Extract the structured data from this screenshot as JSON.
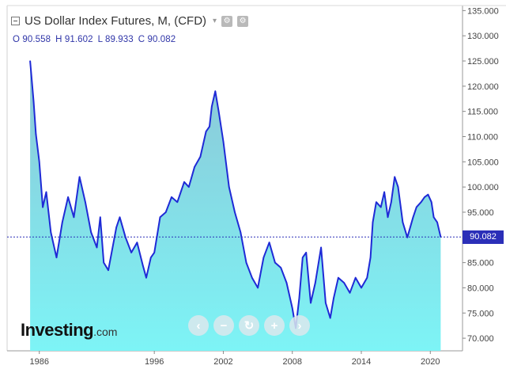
{
  "title": {
    "text": "US Dollar Index Futures, M, (CFD)",
    "caret": "▾",
    "icons": [
      "settings-icon",
      "gear-icon"
    ]
  },
  "ohlc": {
    "o_label": "O",
    "o_value": "90.558",
    "h_label": "H",
    "h_value": "91.602",
    "l_label": "L",
    "l_value": "89.933",
    "c_label": "C",
    "c_value": "90.082"
  },
  "current_price_tag": "90.082",
  "brand": {
    "name": "Investing",
    "domain": ".com"
  },
  "zoom_controls": [
    {
      "name": "scroll-left-icon",
      "glyph": "‹"
    },
    {
      "name": "zoom-out-icon",
      "glyph": "−"
    },
    {
      "name": "reset-icon",
      "glyph": "↻"
    },
    {
      "name": "zoom-in-icon",
      "glyph": "+"
    },
    {
      "name": "scroll-right-icon",
      "glyph": "›"
    }
  ],
  "colors": {
    "line": "#1f2ad6",
    "area_top": "#8dc6d6",
    "area_bottom": "#7df4f6",
    "price_line": "#2b2fb8",
    "price_tag_bg": "#2b2fb8",
    "axis_text": "#444444",
    "tick": "#888888"
  },
  "chart_data": {
    "type": "area",
    "title": "US Dollar Index Futures, M, (CFD)",
    "x_tick_labels": [
      "1986",
      "1996",
      "2002",
      "2008",
      "2014",
      "2020"
    ],
    "y_tick_labels": [
      "70.000",
      "75.000",
      "80.000",
      "85.000",
      "90.000",
      "95.000",
      "100.000",
      "105.000",
      "110.000",
      "115.000",
      "120.000",
      "125.000",
      "130.000",
      "135.000"
    ],
    "ylim": [
      67.5,
      136
    ],
    "xlim": [
      1983.2,
      2022.8
    ],
    "current_price": 90.082,
    "grid": false,
    "x": [
      1985.2,
      1985.5,
      1985.7,
      1986.0,
      1986.3,
      1986.6,
      1987.0,
      1987.5,
      1988.0,
      1988.5,
      1989.0,
      1989.5,
      1990.0,
      1990.5,
      1991.0,
      1991.3,
      1991.6,
      1992.0,
      1992.7,
      1993.0,
      1993.5,
      1994.0,
      1994.5,
      1995.0,
      1995.3,
      1995.7,
      1996.0,
      1996.5,
      1997.0,
      1997.5,
      1998.0,
      1998.6,
      1999.0,
      1999.5,
      2000.0,
      2000.5,
      2000.8,
      2001.0,
      2001.3,
      2001.6,
      2002.0,
      2002.5,
      2003.0,
      2003.5,
      2004.0,
      2004.5,
      2005.0,
      2005.5,
      2006.0,
      2006.5,
      2007.0,
      2007.5,
      2008.0,
      2008.3,
      2008.6,
      2008.9,
      2009.2,
      2009.6,
      2010.0,
      2010.5,
      2010.9,
      2011.3,
      2011.6,
      2012.0,
      2012.5,
      2013.0,
      2013.5,
      2014.0,
      2014.5,
      2014.8,
      2015.0,
      2015.3,
      2015.7,
      2016.0,
      2016.3,
      2016.6,
      2016.9,
      2017.2,
      2017.6,
      2018.0,
      2018.5,
      2018.8,
      2019.2,
      2019.5,
      2019.8,
      2020.1,
      2020.3,
      2020.6,
      2020.9
    ],
    "y": [
      125.0,
      117.0,
      110.5,
      105.0,
      96.0,
      99.0,
      91.0,
      86.0,
      93.0,
      98.0,
      94.0,
      102.0,
      97.0,
      91.0,
      88.0,
      94.0,
      85.0,
      83.5,
      92.0,
      94.0,
      90.0,
      87.0,
      89.0,
      84.5,
      82.0,
      86.0,
      87.0,
      94.0,
      95.0,
      98.0,
      97.0,
      101.0,
      100.0,
      104.0,
      106.0,
      111.0,
      112.0,
      116.0,
      119.0,
      115.0,
      109.0,
      100.0,
      95.0,
      91.0,
      85.0,
      82.0,
      80.0,
      86.0,
      89.0,
      85.0,
      84.0,
      81.0,
      76.0,
      72.0,
      78.0,
      86.0,
      87.0,
      77.0,
      81.0,
      88.0,
      77.0,
      74.0,
      78.0,
      82.0,
      81.0,
      79.0,
      82.0,
      80.0,
      82.0,
      86.0,
      93.0,
      97.0,
      96.0,
      99.0,
      94.0,
      97.0,
      102.0,
      100.0,
      93.0,
      90.0,
      94.0,
      96.0,
      97.0,
      98.0,
      98.5,
      97.0,
      94.0,
      93.0,
      90.08
    ]
  }
}
